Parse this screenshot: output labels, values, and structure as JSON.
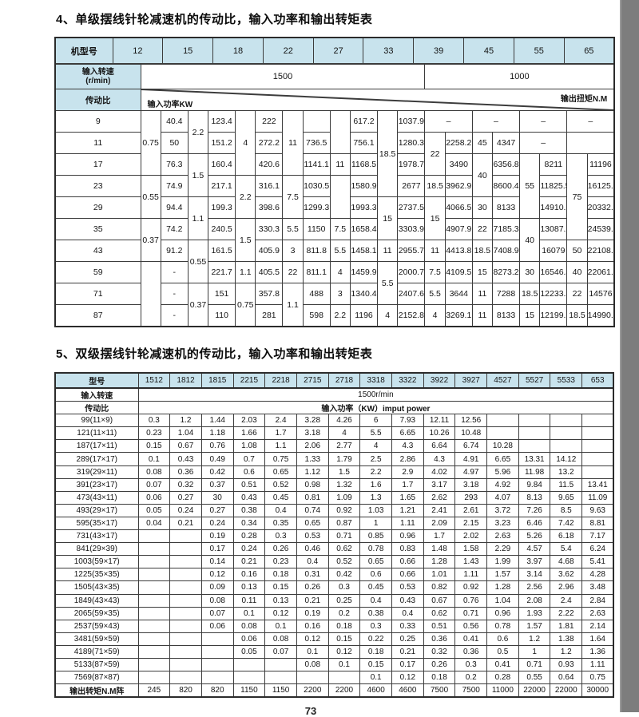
{
  "page": {
    "title1": "4、单级摆线针轮减速机的传动比，输入功率和输出转矩表",
    "title2": "5、双级摆线针轮减速机的传动比，输入功率和输出转矩表",
    "page_number": "73"
  },
  "colors": {
    "header_bg": "#c8e3ed",
    "grid": "#3c3c3c",
    "scan_edge": "#7d7d7d"
  },
  "table1": {
    "corner_label": "机型号",
    "models": [
      "12",
      "15",
      "18",
      "22",
      "27",
      "33",
      "39",
      "45",
      "55",
      "65"
    ],
    "speed_label_line1": "输入转速",
    "speed_label_line2": "(r/min)",
    "speed_cells": [
      {
        "text": "1500",
        "colspan": 12
      },
      {
        "text": "1000",
        "colspan": 8
      }
    ],
    "ratio_label": "传动比",
    "power_label": "输入功率KW",
    "torque_label": "输出扭矩N.M",
    "body_rows": [
      [
        {
          "t": "9"
        },
        {
          "t": "0.75",
          "rs": 3
        },
        {
          "t": "40.4"
        },
        {
          "t": "2.2",
          "rs": 2
        },
        {
          "t": "123.4"
        },
        {
          "t": "4",
          "rs": 3
        },
        {
          "t": "222"
        },
        {
          "t": "11",
          "rs": 3
        },
        {
          "t": ""
        },
        {
          "t": "",
          "rs": 2
        },
        {
          "t": "617.2"
        },
        {
          "t": "18.5",
          "rs": 4
        },
        {
          "t": "1037.9"
        },
        {
          "t": "–",
          "cs": 2
        },
        {
          "t": "–",
          "cs": 2
        },
        {
          "t": "–",
          "cs": 2
        },
        {
          "t": "–",
          "cs": 2
        }
      ],
      [
        {
          "t": "11"
        },
        {
          "t": "50"
        },
        {
          "t": "151.2"
        },
        {
          "t": "272.2"
        },
        {
          "t": "736.5"
        },
        {
          "t": "756.1"
        },
        {
          "t": "1280.3"
        },
        {
          "t": "22",
          "rs": 2
        },
        {
          "t": "2258.2"
        },
        {
          "t": "45"
        },
        {
          "t": "4347"
        },
        {
          "t": "–",
          "cs": 2
        },
        {
          "t": "",
          "cs": 2
        }
      ],
      [
        {
          "t": "17"
        },
        {
          "t": "76.3"
        },
        {
          "t": "1.5",
          "rs": 2
        },
        {
          "t": "160.4"
        },
        {
          "t": "420.6"
        },
        {
          "t": "1141.1"
        },
        {
          "t": "11"
        },
        {
          "t": "1168.5"
        },
        {
          "t": "1978.7"
        },
        {
          "t": "3490"
        },
        {
          "t": "40",
          "rs": 2
        },
        {
          "t": "6356.8"
        },
        {
          "t": "55",
          "rs": 3
        },
        {
          "t": "8211"
        },
        {
          "t": "75",
          "rs": 4
        },
        {
          "t": "11196"
        }
      ],
      [
        {
          "t": "23"
        },
        {
          "t": "0.55",
          "rs": 2
        },
        {
          "t": "74.9"
        },
        {
          "t": "217.1"
        },
        {
          "t": "2.2",
          "rs": 2
        },
        {
          "t": "316.1"
        },
        {
          "t": "7.5",
          "rs": 2
        },
        {
          "t": "1030.5"
        },
        {
          "t": "",
          "rs": 2
        },
        {
          "t": "1580.9"
        },
        {
          "t": "2677"
        },
        {
          "t": "18.5"
        },
        {
          "t": "3962.9"
        },
        {
          "t": "8600.4"
        },
        {
          "t": "11825.5"
        },
        {
          "t": "16125.8"
        }
      ],
      [
        {
          "t": "29"
        },
        {
          "t": "94.4"
        },
        {
          "t": "1.1",
          "rs": 2
        },
        {
          "t": "199.3"
        },
        {
          "t": "398.6"
        },
        {
          "t": "1299.3"
        },
        {
          "t": "1993.3"
        },
        {
          "t": "15",
          "rs": 2
        },
        {
          "t": "2737.5"
        },
        {
          "t": "15",
          "rs": 2
        },
        {
          "t": "4066.5"
        },
        {
          "t": "30"
        },
        {
          "t": "8133"
        },
        {
          "t": "14910.5"
        },
        {
          "t": "20332.5"
        }
      ],
      [
        {
          "t": "35"
        },
        {
          "t": "0.37",
          "rs": 2
        },
        {
          "t": "74.2"
        },
        {
          "t": "240.5"
        },
        {
          "t": "1.5",
          "rs": 2
        },
        {
          "t": "330.3"
        },
        {
          "t": "5.5"
        },
        {
          "t": "1150"
        },
        {
          "t": "7.5"
        },
        {
          "t": "1658.4"
        },
        {
          "t": "3303.9"
        },
        {
          "t": "4907.9"
        },
        {
          "t": "22"
        },
        {
          "t": "7185.3"
        },
        {
          "t": "40",
          "rs": 2
        },
        {
          "t": "13087.6"
        },
        {
          "t": "24539.2"
        }
      ],
      [
        {
          "t": "43"
        },
        {
          "t": "91.2"
        },
        {
          "t": "0.55",
          "rs": 2
        },
        {
          "t": "161.5"
        },
        {
          "t": "405.9"
        },
        {
          "t": "3"
        },
        {
          "t": "811.8"
        },
        {
          "t": "5.5"
        },
        {
          "t": "1458.1"
        },
        {
          "t": "11"
        },
        {
          "t": "2955.7"
        },
        {
          "t": "11"
        },
        {
          "t": "4413.8"
        },
        {
          "t": "18.5"
        },
        {
          "t": "7408.9"
        },
        {
          "t": "16079"
        },
        {
          "t": "50"
        },
        {
          "t": "22108.7"
        }
      ],
      [
        {
          "t": "59"
        },
        {
          "t": "",
          "rs": 3
        },
        {
          "t": "-"
        },
        {
          "t": "221.7"
        },
        {
          "t": "1.1"
        },
        {
          "t": "405.5"
        },
        {
          "t": "22"
        },
        {
          "t": "811.1"
        },
        {
          "t": "4"
        },
        {
          "t": "1459.9"
        },
        {
          "t": "5.5",
          "rs": 2
        },
        {
          "t": "2000.7"
        },
        {
          "t": "7.5"
        },
        {
          "t": "4109.5"
        },
        {
          "t": "15"
        },
        {
          "t": "8273.2"
        },
        {
          "t": "30"
        },
        {
          "t": "16546.4"
        },
        {
          "t": "40"
        },
        {
          "t": "22061.9"
        }
      ],
      [
        {
          "t": "71"
        },
        {
          "t": "-"
        },
        {
          "t": "0.37",
          "rs": 2
        },
        {
          "t": "151"
        },
        {
          "t": "0.75",
          "rs": 2
        },
        {
          "t": "357.8"
        },
        {
          "t": "1.1",
          "rs": 2
        },
        {
          "t": "488"
        },
        {
          "t": "3"
        },
        {
          "t": "1340.4"
        },
        {
          "t": "2407.6"
        },
        {
          "t": "5.5"
        },
        {
          "t": "3644"
        },
        {
          "t": "11"
        },
        {
          "t": "7288"
        },
        {
          "t": "18.5"
        },
        {
          "t": "12233.4"
        },
        {
          "t": "22"
        },
        {
          "t": "14576"
        }
      ],
      [
        {
          "t": "87"
        },
        {
          "t": "-"
        },
        {
          "t": "110"
        },
        {
          "t": "281"
        },
        {
          "t": "598"
        },
        {
          "t": "2.2"
        },
        {
          "t": "1196"
        },
        {
          "t": "4"
        },
        {
          "t": "2152.8"
        },
        {
          "t": "4"
        },
        {
          "t": "3269.1"
        },
        {
          "t": "11"
        },
        {
          "t": "8133"
        },
        {
          "t": "15"
        },
        {
          "t": "12199.5"
        },
        {
          "t": "18.5"
        },
        {
          "t": "14990.2"
        }
      ]
    ]
  },
  "table2": {
    "corner_label": "型号",
    "models": [
      "1512",
      "1812",
      "1815",
      "2215",
      "2218",
      "2715",
      "2718",
      "3318",
      "3322",
      "3922",
      "3927",
      "4527",
      "5527",
      "5533",
      "653"
    ],
    "speed_label": "输入转速",
    "speed_value": "1500r/min",
    "ratio_label": "传动比",
    "power_header": "输入功率（KW）imput power",
    "rows": [
      {
        "ratio": "99(11×9)",
        "values": [
          "0.3",
          "1.2",
          "1.44",
          "2.03",
          "2.4",
          "3.28",
          "4.26",
          "6",
          "7.93",
          "12.11",
          "12.56",
          "",
          "",
          "",
          ""
        ]
      },
      {
        "ratio": "121(11×11)",
        "values": [
          "0.23",
          "1.04",
          "1.18",
          "1.66",
          "1.7",
          "3.18",
          "4",
          "5.5",
          "6.65",
          "10.26",
          "10.48",
          "",
          "",
          "",
          ""
        ]
      },
      {
        "ratio": "187(17×11)",
        "values": [
          "0.15",
          "0.67",
          "0.76",
          "1.08",
          "1.1",
          "2.06",
          "2.77",
          "4",
          "4.3",
          "6.64",
          "6.74",
          "10.28",
          "",
          "",
          ""
        ]
      },
      {
        "ratio": "289(17×17)",
        "values": [
          "0.1",
          "0.43",
          "0.49",
          "0.7",
          "0.75",
          "1.33",
          "1.79",
          "2.5",
          "2.86",
          "4.3",
          "4.91",
          "6.65",
          "13.31",
          "14.12",
          ""
        ]
      },
      {
        "ratio": "319(29×11)",
        "values": [
          "0.08",
          "0.36",
          "0.42",
          "0.6",
          "0.65",
          "1.12",
          "1.5",
          "2.2",
          "2.9",
          "4.02",
          "4.97",
          "5.96",
          "11.98",
          "13.2",
          ""
        ]
      },
      {
        "ratio": "391(23×17)",
        "values": [
          "0.07",
          "0.32",
          "0.37",
          "0.51",
          "0.52",
          "0.98",
          "1.32",
          "1.6",
          "1.7",
          "3.17",
          "3.18",
          "4.92",
          "9.84",
          "11.5",
          "13.41"
        ]
      },
      {
        "ratio": "473(43×11)",
        "values": [
          "0.06",
          "0.27",
          "30",
          "0.43",
          "0.45",
          "0.81",
          "1.09",
          "1.3",
          "1.65",
          "2.62",
          "293",
          "4.07",
          "8.13",
          "9.65",
          "11.09"
        ]
      },
      {
        "ratio": "493(29×17)",
        "values": [
          "0.05",
          "0.24",
          "0.27",
          "0.38",
          "0.4",
          "0.74",
          "0.92",
          "1.03",
          "1.21",
          "2.41",
          "2.61",
          "3.72",
          "7.26",
          "8.5",
          "9.63"
        ]
      },
      {
        "ratio": "595(35×17)",
        "values": [
          "0.04",
          "0.21",
          "0.24",
          "0.34",
          "0.35",
          "0.65",
          "0.87",
          "1",
          "1.11",
          "2.09",
          "2.15",
          "3.23",
          "6.46",
          "7.42",
          "8.81"
        ]
      },
      {
        "ratio": "731(43×17)",
        "values": [
          "",
          "",
          "0.19",
          "0.28",
          "0.3",
          "0.53",
          "0.71",
          "0.85",
          "0.96",
          "1.7",
          "2.02",
          "2.63",
          "5.26",
          "6.18",
          "7.17"
        ]
      },
      {
        "ratio": "841(29×39)",
        "values": [
          "",
          "",
          "0.17",
          "0.24",
          "0.26",
          "0.46",
          "0.62",
          "0.78",
          "0.83",
          "1.48",
          "1.58",
          "2.29",
          "4.57",
          "5.4",
          "6.24"
        ]
      },
      {
        "ratio": "1003(59×17)",
        "values": [
          "",
          "",
          "0.14",
          "0.21",
          "0.23",
          "0.4",
          "0.52",
          "0.65",
          "0.66",
          "1.28",
          "1.43",
          "1.99",
          "3.97",
          "4.68",
          "5.41"
        ]
      },
      {
        "ratio": "1225(35×35)",
        "values": [
          "",
          "",
          "0.12",
          "0.16",
          "0.18",
          "0.31",
          "0.42",
          "0.6",
          "0.66",
          "1.01",
          "1.11",
          "1.57",
          "3.14",
          "3.62",
          "4.28"
        ]
      },
      {
        "ratio": "1505(43×35)",
        "values": [
          "",
          "",
          "0.09",
          "0.13",
          "0.15",
          "0.26",
          "0.3",
          "0.45",
          "0.53",
          "0.82",
          "0.92",
          "1.28",
          "2.56",
          "2.96",
          "3.48"
        ]
      },
      {
        "ratio": "1849(43×43)",
        "values": [
          "",
          "",
          "0.08",
          "0.11",
          "0.13",
          "0.21",
          "0.25",
          "0.4",
          "0.43",
          "0.67",
          "0.76",
          "1.04",
          "2.08",
          "2.4",
          "2.84"
        ]
      },
      {
        "ratio": "2065(59×35)",
        "values": [
          "",
          "",
          "0.07",
          "0.1",
          "0.12",
          "0.19",
          "0.2",
          "0.38",
          "0.4",
          "0.62",
          "0.71",
          "0.96",
          "1.93",
          "2.22",
          "2.63"
        ]
      },
      {
        "ratio": "2537(59×43)",
        "values": [
          "",
          "",
          "0.06",
          "0.08",
          "0.1",
          "0.16",
          "0.18",
          "0.3",
          "0.33",
          "0.51",
          "0.56",
          "0.78",
          "1.57",
          "1.81",
          "2.14"
        ]
      },
      {
        "ratio": "3481(59×59)",
        "values": [
          "",
          "",
          "",
          "0.06",
          "0.08",
          "0.12",
          "0.15",
          "0.22",
          "0.25",
          "0.36",
          "0.41",
          "0.6",
          "1.2",
          "1.38",
          "1.64"
        ]
      },
      {
        "ratio": "4189(71×59)",
        "values": [
          "",
          "",
          "",
          "0.05",
          "0.07",
          "0.1",
          "0.12",
          "0.18",
          "0.21",
          "0.32",
          "0.36",
          "0.5",
          "1",
          "1.2",
          "1.36"
        ]
      },
      {
        "ratio": "5133(87×59)",
        "values": [
          "",
          "",
          "",
          "",
          "",
          "0.08",
          "0.1",
          "0.15",
          "0.17",
          "0.26",
          "0.3",
          "0.41",
          "0.71",
          "0.93",
          "1.11"
        ]
      },
      {
        "ratio": "7569(87×87)",
        "values": [
          "",
          "",
          "",
          "",
          "",
          "",
          "",
          "0.1",
          "0.12",
          "0.18",
          "0.2",
          "0.28",
          "0.55",
          "0.64",
          "0.75"
        ]
      }
    ],
    "footer_label": "输出转矩N.M阵",
    "footer_values": [
      "245",
      "820",
      "820",
      "1150",
      "1150",
      "2200",
      "2200",
      "4600",
      "4600",
      "7500",
      "7500",
      "11000",
      "22000",
      "22000",
      "30000"
    ]
  }
}
